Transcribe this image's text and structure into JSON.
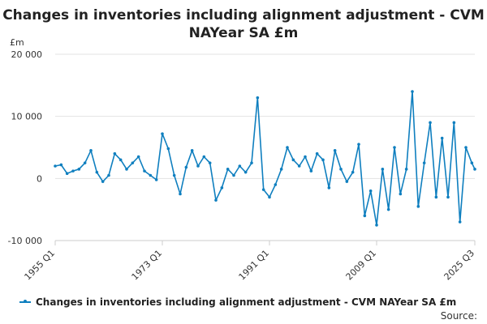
{
  "chart_data": {
    "type": "line",
    "title": "Changes in inventories including alignment adjustment - CVM NAYear SA £m",
    "ylabel": "£m",
    "xlabel": "",
    "ylim": [
      -10000,
      20000
    ],
    "yticks": [
      -10000,
      0,
      10000,
      20000
    ],
    "ytick_labels": [
      "-10 000",
      "0",
      "10 000",
      "20 000"
    ],
    "xticks": [
      "1955 Q1",
      "1973 Q1",
      "1991 Q1",
      "2009 Q1",
      "2025 Q3"
    ],
    "grid": "horizontal",
    "legend_position": "bottom-left",
    "series": [
      {
        "name": "Changes in inventories including alignment adjustment - CVM NAYear SA £m",
        "color": "#0f7fbf",
        "x": [
          "1955 Q1",
          "1956 Q1",
          "1957 Q1",
          "1958 Q1",
          "1959 Q1",
          "1960 Q1",
          "1961 Q1",
          "1962 Q1",
          "1963 Q1",
          "1964 Q1",
          "1965 Q1",
          "1966 Q1",
          "1967 Q1",
          "1968 Q1",
          "1969 Q1",
          "1970 Q1",
          "1971 Q1",
          "1972 Q1",
          "1973 Q1",
          "1974 Q1",
          "1975 Q1",
          "1976 Q1",
          "1977 Q1",
          "1978 Q1",
          "1979 Q1",
          "1980 Q1",
          "1981 Q1",
          "1982 Q1",
          "1983 Q1",
          "1984 Q1",
          "1985 Q1",
          "1986 Q1",
          "1987 Q1",
          "1988 Q1",
          "1989 Q1",
          "1990 Q1",
          "1991 Q1",
          "1992 Q1",
          "1993 Q1",
          "1994 Q1",
          "1995 Q1",
          "1996 Q1",
          "1997 Q1",
          "1998 Q1",
          "1999 Q1",
          "2000 Q1",
          "2001 Q1",
          "2002 Q1",
          "2003 Q1",
          "2004 Q1",
          "2005 Q1",
          "2006 Q1",
          "2007 Q1",
          "2008 Q1",
          "2009 Q1",
          "2010 Q1",
          "2011 Q1",
          "2012 Q1",
          "2013 Q1",
          "2014 Q1",
          "2015 Q1",
          "2016 Q1",
          "2017 Q1",
          "2018 Q1",
          "2019 Q1",
          "2020 Q1",
          "2021 Q1",
          "2022 Q1",
          "2023 Q1",
          "2024 Q1",
          "2025 Q1",
          "2025 Q3"
        ],
        "values": [
          2000,
          2200,
          800,
          1200,
          1500,
          2500,
          4500,
          1000,
          -500,
          500,
          4000,
          3000,
          1500,
          2500,
          3500,
          1200,
          500,
          -200,
          7200,
          4800,
          500,
          -2500,
          1800,
          4500,
          2000,
          3500,
          2500,
          -3500,
          -1500,
          1500,
          500,
          2000,
          1000,
          2500,
          13000,
          -1800,
          -3000,
          -1000,
          1500,
          5000,
          3000,
          2000,
          3500,
          1200,
          4000,
          3000,
          -1500,
          4500,
          1500,
          -500,
          1000,
          5500,
          -6000,
          -2000,
          -7500,
          1500,
          -5000,
          5000,
          -2500,
          1500,
          14000,
          -4500,
          2500,
          9000,
          -3000,
          6500,
          -3000,
          9000,
          -7000,
          5000,
          2500,
          1500
        ]
      }
    ]
  },
  "source_label": "Source:"
}
